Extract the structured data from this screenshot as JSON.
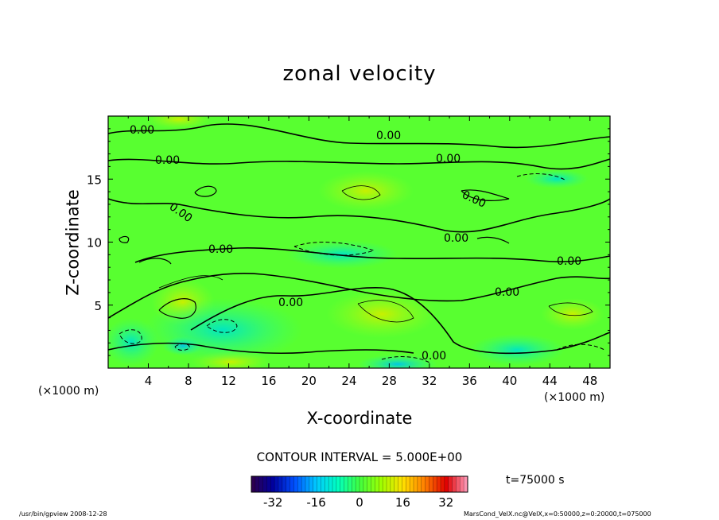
{
  "chart_data": {
    "type": "heatmap",
    "title": "zonal velocity",
    "xlabel": "X-coordinate",
    "ylabel": "Z-coordinate",
    "x_unit": "(×1000 m)",
    "xlim": [
      0,
      50
    ],
    "ylim": [
      0,
      20
    ],
    "x_ticks": [
      4,
      8,
      12,
      16,
      20,
      24,
      28,
      32,
      36,
      40,
      44,
      48
    ],
    "y_ticks": [
      5,
      10,
      15
    ],
    "contour_interval_text": "CONTOUR INTERVAL = 5.000E+00",
    "contour_labels": [
      "0.00",
      "0.00",
      "0.00",
      "0.00",
      "0.00",
      "0.00",
      "0.00",
      "0.00",
      "0.00",
      "0.00",
      "0.00",
      "0.00"
    ],
    "colorbar": {
      "range": [
        -40,
        40
      ],
      "ticks": [
        -32,
        -16,
        0,
        16,
        32
      ],
      "colors": [
        "#300048",
        "#0000a0",
        "#0050ff",
        "#00c8ff",
        "#00ffc0",
        "#40ff40",
        "#a0ff00",
        "#ffe000",
        "#ff8000",
        "#e00000",
        "#ffa0c0"
      ]
    },
    "time_label": "t=75000 s",
    "grid": false,
    "legend": "colorbar-bottom"
  },
  "footer": {
    "left": "/usr/bin/gpview  2008-12-28",
    "right": "MarsCond_VelX.nc@VelX,x=0:50000,z=0:20000,t=075000"
  }
}
